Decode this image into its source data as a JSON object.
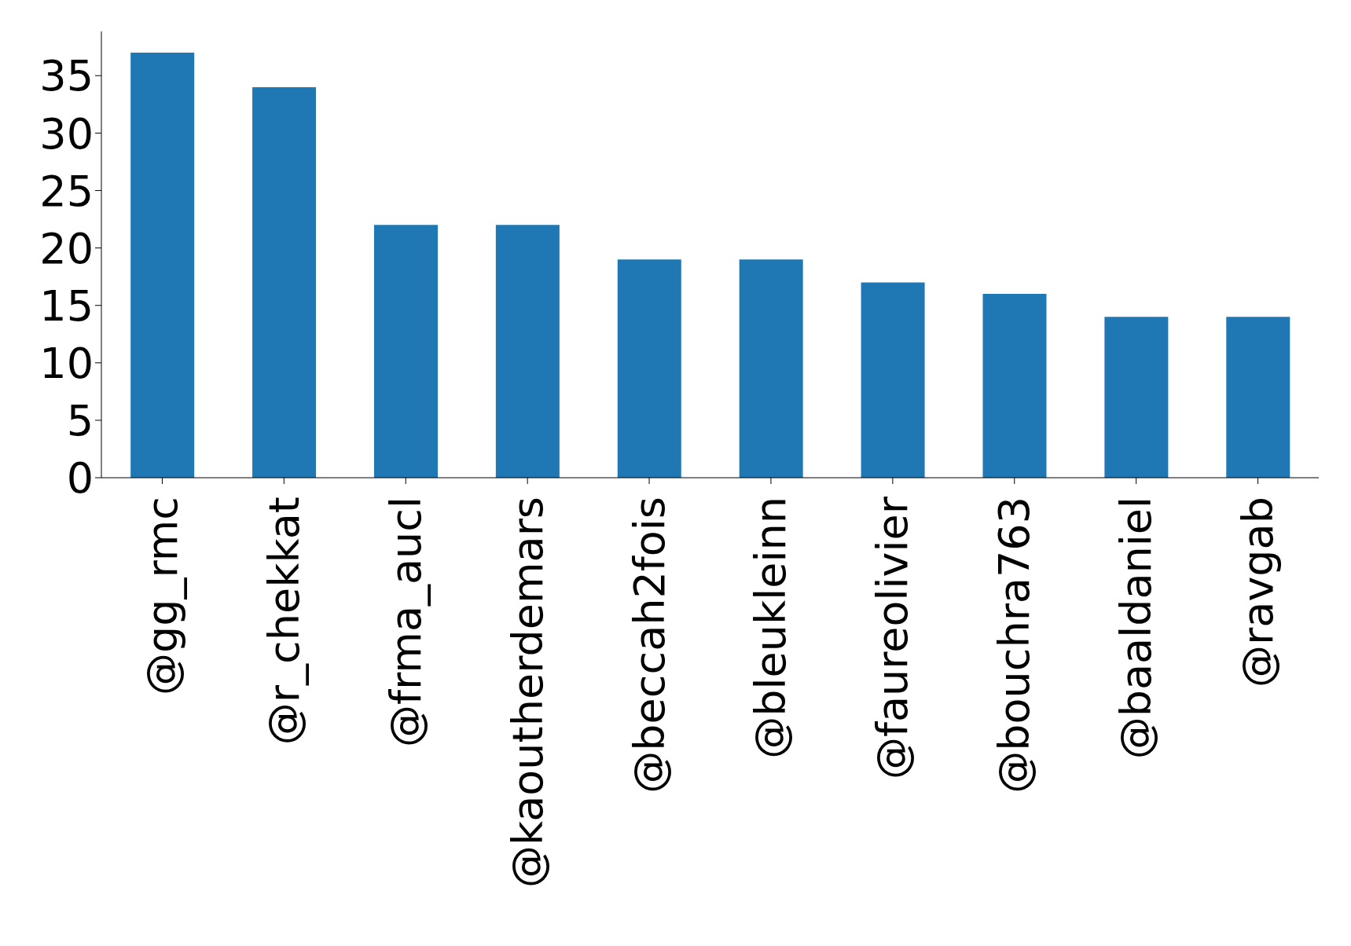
{
  "chart_data": {
    "type": "bar",
    "categories": [
      "@gg_rmc",
      "@r_chekkat",
      "@frma_aucl",
      "@kaoutherdemars",
      "@beccah2fois",
      "@bleukleinn",
      "@faureolivier",
      "@bouchra763",
      "@baaldaniel",
      "@ravgab"
    ],
    "values": [
      37,
      34,
      22,
      22,
      19,
      19,
      17,
      16,
      14,
      14
    ],
    "color": "#1f77b4",
    "ylim": [
      0,
      38.85
    ],
    "yticks": [
      0,
      5,
      10,
      15,
      20,
      25,
      30,
      35
    ],
    "grid": false,
    "legend": false
  }
}
